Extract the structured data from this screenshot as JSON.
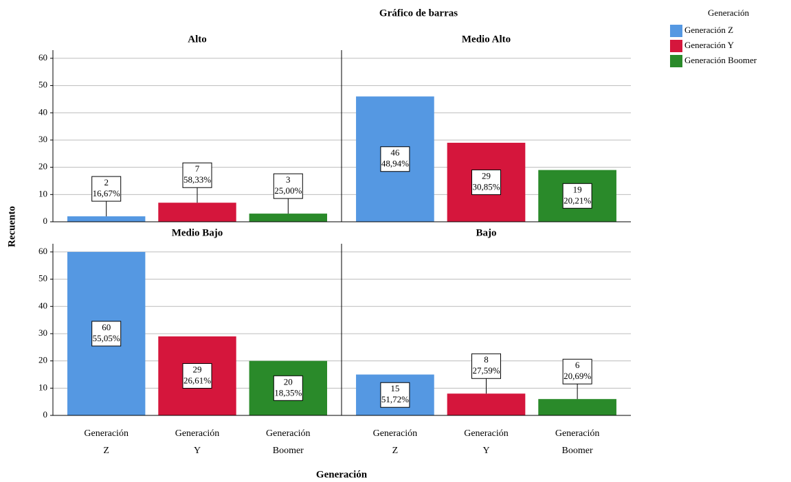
{
  "figure": {
    "title": "Gráfico de barras",
    "ylabel": "Recuento",
    "xlabel": "Generación"
  },
  "legend": {
    "title": "Generación",
    "entries": [
      "Generación Z",
      "Generación Y",
      "Generación Boomer"
    ],
    "colors": [
      "#5598e2",
      "#d5163c",
      "#2a8a2a"
    ]
  },
  "chart_data": [
    {
      "type": "bar",
      "title": "Alto",
      "values": [
        2,
        7,
        3
      ],
      "percent_labels": [
        "16,67%",
        "58,33%",
        "25,00%"
      ],
      "ylim": [
        0,
        63
      ],
      "yticks": [
        0,
        10,
        20,
        30,
        40,
        50,
        60
      ],
      "grid": true
    },
    {
      "type": "bar",
      "title": "Medio Alto",
      "values": [
        46,
        29,
        19
      ],
      "percent_labels": [
        "48,94%",
        "30,85%",
        "20,21%"
      ],
      "ylim": [
        0,
        63
      ],
      "yticks": [
        0,
        10,
        20,
        30,
        40,
        50,
        60
      ],
      "grid": true
    },
    {
      "type": "bar",
      "title": "Medio Bajo",
      "categories": [
        [
          "Generación",
          "Z"
        ],
        [
          "Generación",
          "Y"
        ],
        [
          "Generación",
          "Boomer"
        ]
      ],
      "values": [
        60,
        29,
        20
      ],
      "percent_labels": [
        "55,05%",
        "26,61%",
        "18,35%"
      ],
      "ylim": [
        0,
        63
      ],
      "yticks": [
        0,
        10,
        20,
        30,
        40,
        50,
        60
      ],
      "grid": true
    },
    {
      "type": "bar",
      "title": "Bajo",
      "categories": [
        [
          "Generación",
          "Z"
        ],
        [
          "Generación",
          "Y"
        ],
        [
          "Generación",
          "Boomer"
        ]
      ],
      "values": [
        15,
        8,
        6
      ],
      "percent_labels": [
        "51,72%",
        "27,59%",
        "20,69%"
      ],
      "ylim": [
        0,
        63
      ],
      "yticks": [
        0,
        10,
        20,
        30,
        40,
        50,
        60
      ],
      "grid": true
    }
  ]
}
